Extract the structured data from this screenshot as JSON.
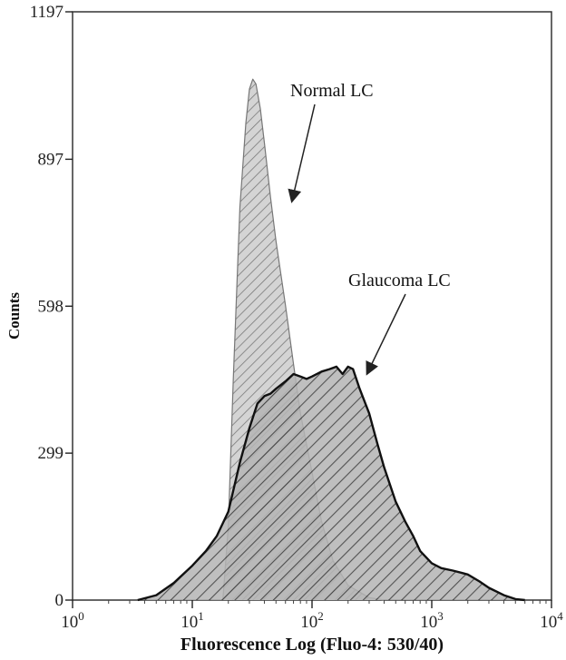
{
  "chart_data": {
    "type": "area",
    "xlabel": "Fluorescence Log (Fluo-4: 530/40)",
    "ylabel": "Counts",
    "xscale": "log",
    "xlim": [
      1,
      10000
    ],
    "ylim": [
      0,
      1197
    ],
    "yticks": [
      0,
      299,
      598,
      897,
      1197
    ],
    "xticks": [
      {
        "value": 1,
        "base": "10",
        "exp": "0"
      },
      {
        "value": 10,
        "base": "10",
        "exp": "1"
      },
      {
        "value": 100,
        "base": "10",
        "exp": "2"
      },
      {
        "value": 1000,
        "base": "10",
        "exp": "3"
      },
      {
        "value": 10000,
        "base": "10",
        "exp": "4"
      }
    ],
    "grid": false,
    "series": [
      {
        "name": "Normal LC",
        "fill": "light-gray-hatched",
        "points": [
          [
            18,
            0
          ],
          [
            20,
            150
          ],
          [
            22,
            450
          ],
          [
            25,
            800
          ],
          [
            28,
            970
          ],
          [
            30,
            1040
          ],
          [
            32,
            1060
          ],
          [
            34,
            1050
          ],
          [
            37,
            1000
          ],
          [
            40,
            930
          ],
          [
            45,
            820
          ],
          [
            50,
            730
          ],
          [
            60,
            600
          ],
          [
            70,
            480
          ],
          [
            80,
            380
          ],
          [
            100,
            260
          ],
          [
            120,
            160
          ],
          [
            150,
            80
          ],
          [
            200,
            30
          ],
          [
            300,
            5
          ],
          [
            400,
            0
          ]
        ]
      },
      {
        "name": "Glaucoma LC",
        "fill": "dark-gray-hatched",
        "points": [
          [
            3.5,
            0
          ],
          [
            5,
            10
          ],
          [
            7,
            35
          ],
          [
            10,
            70
          ],
          [
            13,
            100
          ],
          [
            16,
            130
          ],
          [
            20,
            180
          ],
          [
            25,
            280
          ],
          [
            30,
            350
          ],
          [
            35,
            400
          ],
          [
            40,
            415
          ],
          [
            45,
            420
          ],
          [
            50,
            430
          ],
          [
            60,
            445
          ],
          [
            70,
            460
          ],
          [
            80,
            455
          ],
          [
            90,
            450
          ],
          [
            100,
            455
          ],
          [
            120,
            465
          ],
          [
            140,
            470
          ],
          [
            160,
            475
          ],
          [
            180,
            460
          ],
          [
            200,
            475
          ],
          [
            220,
            470
          ],
          [
            250,
            430
          ],
          [
            300,
            380
          ],
          [
            350,
            320
          ],
          [
            400,
            270
          ],
          [
            500,
            200
          ],
          [
            600,
            160
          ],
          [
            700,
            130
          ],
          [
            800,
            100
          ],
          [
            1000,
            75
          ],
          [
            1200,
            65
          ],
          [
            1500,
            60
          ],
          [
            1800,
            55
          ],
          [
            2000,
            52
          ],
          [
            2500,
            38
          ],
          [
            3000,
            25
          ],
          [
            4000,
            10
          ],
          [
            5000,
            2
          ],
          [
            6000,
            0
          ]
        ]
      }
    ],
    "annotations": [
      {
        "text": "Normal LC",
        "target": "Normal LC"
      },
      {
        "text": "Glaucoma LC",
        "target": "Glaucoma LC"
      }
    ]
  },
  "colors": {
    "normal_fill": "#c9c9c9",
    "glaucoma_fill": "#9c9c9c",
    "hatch": "#555555",
    "axis": "#222222"
  }
}
